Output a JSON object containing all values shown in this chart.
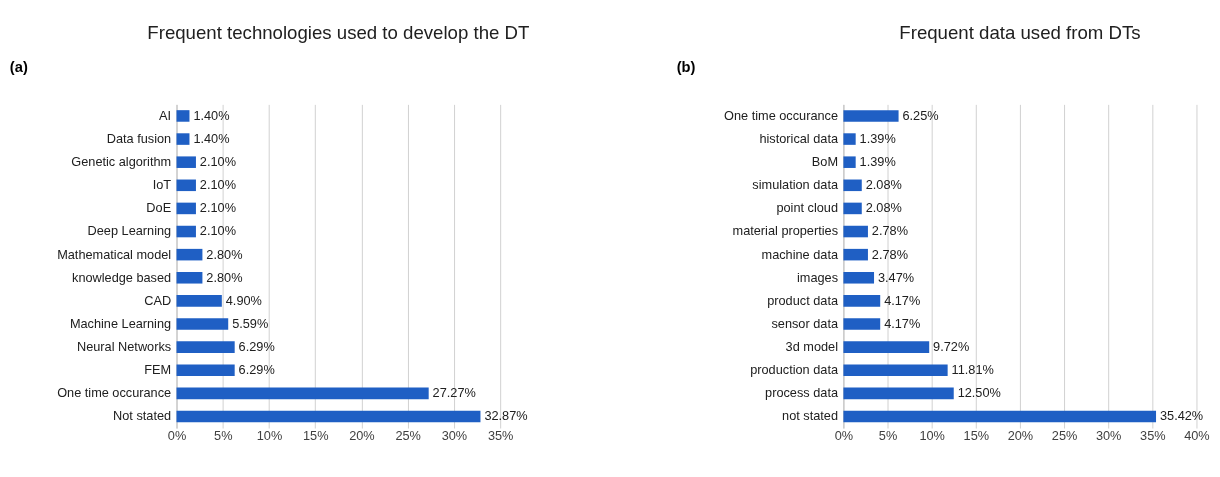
{
  "chart_data": [
    {
      "type": "bar",
      "orientation": "horizontal",
      "title": "Frequent technologies used to develop the DT",
      "annotations": [
        "(a)"
      ],
      "categories": [
        "AI",
        "Data fusion",
        "Genetic algorithm",
        "IoT",
        "DoE",
        "Deep Learning",
        "Mathematical model",
        "knowledge based",
        "CAD",
        "Machine Learning",
        "Neural Networks",
        "FEM",
        "One time occurance",
        "Not stated"
      ],
      "values": [
        1.4,
        1.4,
        2.1,
        2.1,
        2.1,
        2.1,
        2.8,
        2.8,
        4.9,
        5.59,
        6.29,
        6.29,
        27.27,
        32.87
      ],
      "value_labels": [
        "1.40%",
        "1.40%",
        "2.10%",
        "2.10%",
        "2.10%",
        "2.10%",
        "2.80%",
        "2.80%",
        "4.90%",
        "5.59%",
        "6.29%",
        "6.29%",
        "27.27%",
        "32.87%"
      ],
      "color": "#1f5fc4",
      "xlim": [
        0,
        35
      ],
      "xticks": [
        {
          "value": 0,
          "label": "0%"
        },
        {
          "value": 5,
          "label": "5%"
        },
        {
          "value": 10,
          "label": "10%"
        },
        {
          "value": 15,
          "label": "15%"
        },
        {
          "value": 20,
          "label": "20%"
        },
        {
          "value": 25,
          "label": "25%"
        },
        {
          "value": 30,
          "label": "30%"
        },
        {
          "value": 35,
          "label": "35%"
        }
      ],
      "grid": "x"
    },
    {
      "type": "bar",
      "orientation": "horizontal",
      "title": "Frequent data used from DTs",
      "annotations": [
        "(b)"
      ],
      "categories": [
        "One time occurance",
        "historical data",
        "BoM",
        "simulation data",
        "point cloud",
        "material properties",
        "machine data",
        "images",
        "product data",
        "sensor data",
        "3d model",
        "production data",
        "process data",
        "not stated"
      ],
      "values": [
        6.25,
        1.39,
        1.39,
        2.08,
        2.08,
        2.78,
        2.78,
        3.47,
        4.17,
        4.17,
        9.72,
        11.81,
        12.5,
        35.42
      ],
      "value_labels": [
        "6.25%",
        "1.39%",
        "1.39%",
        "2.08%",
        "2.08%",
        "2.78%",
        "2.78%",
        "3.47%",
        "4.17%",
        "4.17%",
        "9.72%",
        "11.81%",
        "12.50%",
        "35.42%"
      ],
      "color": "#1f5fc4",
      "xlim": [
        0,
        40
      ],
      "xticks": [
        {
          "value": 0,
          "label": "0%"
        },
        {
          "value": 5,
          "label": "5%"
        },
        {
          "value": 10,
          "label": "10%"
        },
        {
          "value": 15,
          "label": "15%"
        },
        {
          "value": 20,
          "label": "20%"
        },
        {
          "value": 25,
          "label": "25%"
        },
        {
          "value": 30,
          "label": "30%"
        },
        {
          "value": 35,
          "label": "35%"
        },
        {
          "value": 40,
          "label": "40%"
        }
      ],
      "grid": "x"
    }
  ]
}
